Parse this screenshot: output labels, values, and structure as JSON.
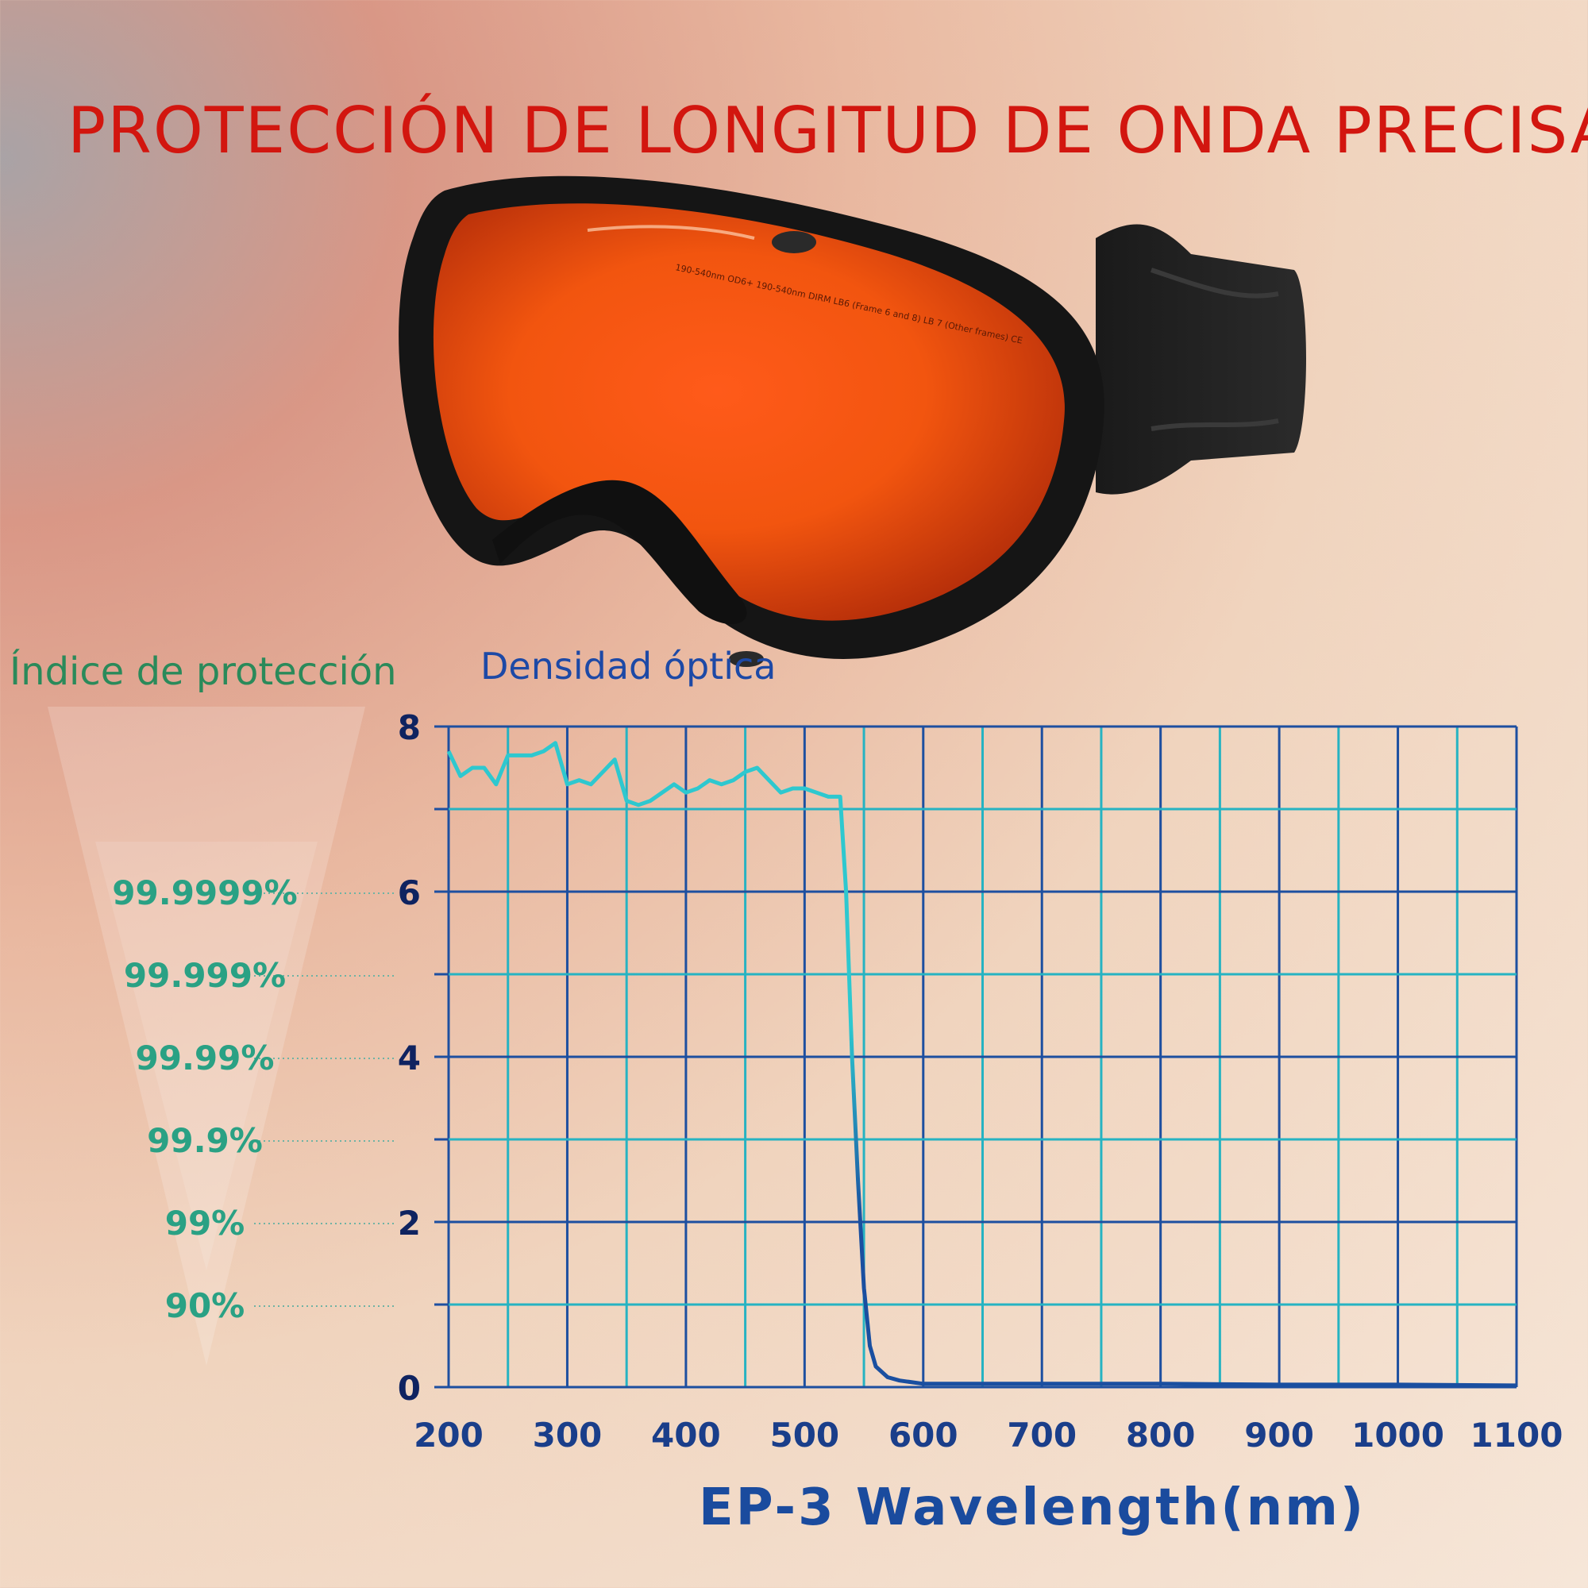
{
  "title": "PROTECCIÓN DE LONGITUD DE ONDA PRECISA",
  "product_lens_text": "190-540nm OD6+ 190-540nm DIRM LB6 (Frame 6 and 8) LB 7 (Other frames) CE",
  "protection_index": {
    "title": "Índice de protección",
    "levels": [
      {
        "label": "99.9999%",
        "od": 6
      },
      {
        "label": "99.999%",
        "od": 5
      },
      {
        "label": "99.99%",
        "od": 4
      },
      {
        "label": "99.9%",
        "od": 3
      },
      {
        "label": "99%",
        "od": 2
      },
      {
        "label": "90%",
        "od": 1
      }
    ]
  },
  "colors": {
    "title": "#d2160f",
    "index_text": "#2a8a5a",
    "grid": "#1d4fa0",
    "curve_high": "#2ec8cf",
    "curve_low": "#1a4fa0"
  },
  "chart_data": {
    "type": "line",
    "ylabel": "Densidad óptica",
    "xlabel": "EP-3 Wavelength(nm)",
    "xlim": [
      200,
      1100
    ],
    "ylim": [
      0,
      8
    ],
    "x_ticks": [
      200,
      300,
      400,
      500,
      600,
      700,
      800,
      900,
      1000,
      1100
    ],
    "y_ticks": [
      0,
      2,
      4,
      6,
      8
    ],
    "grid": true,
    "series": [
      {
        "points": [
          [
            200,
            7.7
          ],
          [
            210,
            7.4
          ],
          [
            220,
            7.5
          ],
          [
            230,
            7.5
          ],
          [
            240,
            7.3
          ],
          [
            250,
            7.65
          ],
          [
            260,
            7.65
          ],
          [
            270,
            7.65
          ],
          [
            280,
            7.7
          ],
          [
            290,
            7.8
          ],
          [
            300,
            7.3
          ],
          [
            310,
            7.35
          ],
          [
            320,
            7.3
          ],
          [
            330,
            7.45
          ],
          [
            340,
            7.6
          ],
          [
            350,
            7.1
          ],
          [
            360,
            7.05
          ],
          [
            370,
            7.1
          ],
          [
            380,
            7.2
          ],
          [
            390,
            7.3
          ],
          [
            400,
            7.2
          ],
          [
            410,
            7.25
          ],
          [
            420,
            7.35
          ],
          [
            430,
            7.3
          ],
          [
            440,
            7.35
          ],
          [
            450,
            7.45
          ],
          [
            460,
            7.5
          ],
          [
            470,
            7.35
          ],
          [
            480,
            7.2
          ],
          [
            490,
            7.25
          ],
          [
            500,
            7.25
          ],
          [
            510,
            7.2
          ],
          [
            520,
            7.15
          ],
          [
            525,
            7.15
          ],
          [
            530,
            7.15
          ],
          [
            535,
            6.0
          ],
          [
            540,
            4.0
          ],
          [
            545,
            2.5
          ],
          [
            550,
            1.2
          ],
          [
            555,
            0.5
          ],
          [
            560,
            0.25
          ],
          [
            570,
            0.12
          ],
          [
            580,
            0.08
          ],
          [
            600,
            0.04
          ],
          [
            650,
            0.04
          ],
          [
            700,
            0.04
          ],
          [
            800,
            0.04
          ],
          [
            900,
            0.03
          ],
          [
            1000,
            0.03
          ],
          [
            1100,
            0.02
          ]
        ]
      }
    ]
  }
}
